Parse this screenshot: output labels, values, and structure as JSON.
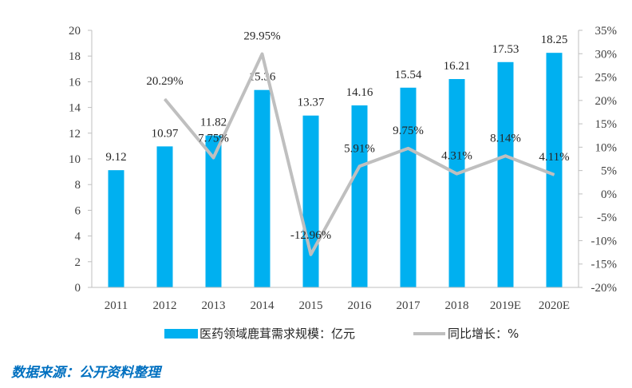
{
  "chart_data": {
    "type": "bar",
    "categories": [
      "2011",
      "2012",
      "2013",
      "2014",
      "2015",
      "2016",
      "2017",
      "2018",
      "2019E",
      "2020E"
    ],
    "series": [
      {
        "name": "医药领域鹿茸需求规模：亿元",
        "type": "bar",
        "axis": "left",
        "color": "#00b0f0",
        "values": [
          9.12,
          10.97,
          11.82,
          15.36,
          13.37,
          14.16,
          15.54,
          16.21,
          17.53,
          18.25
        ],
        "labels": [
          "9.12",
          "10.97",
          "11.82",
          "15.36",
          "13.37",
          "14.16",
          "15.54",
          "16.21",
          "17.53",
          "18.25"
        ]
      },
      {
        "name": "同比增长：%",
        "type": "line",
        "axis": "right",
        "color": "#bfbfbf",
        "values": [
          null,
          20.29,
          7.75,
          29.95,
          -12.96,
          5.91,
          9.75,
          4.31,
          8.14,
          4.11
        ],
        "labels": [
          "",
          "20.29%",
          "7.75%",
          "29.95%",
          "-12.96%",
          "5.91%",
          "9.75%",
          "4.31%",
          "8.14%",
          "4.11%"
        ]
      }
    ],
    "y_left": {
      "min": 0,
      "max": 20,
      "ticks": [
        "0",
        "2",
        "4",
        "6",
        "8",
        "10",
        "12",
        "14",
        "16",
        "18",
        "20"
      ]
    },
    "y_right": {
      "min": -20,
      "max": 35,
      "ticks": [
        "-20%",
        "-15%",
        "-10%",
        "-5%",
        "0%",
        "5%",
        "10%",
        "15%",
        "20%",
        "25%",
        "30%",
        "35%"
      ]
    },
    "grid": false,
    "legend_position": "bottom"
  },
  "source": "数据来源：公开资料整理"
}
